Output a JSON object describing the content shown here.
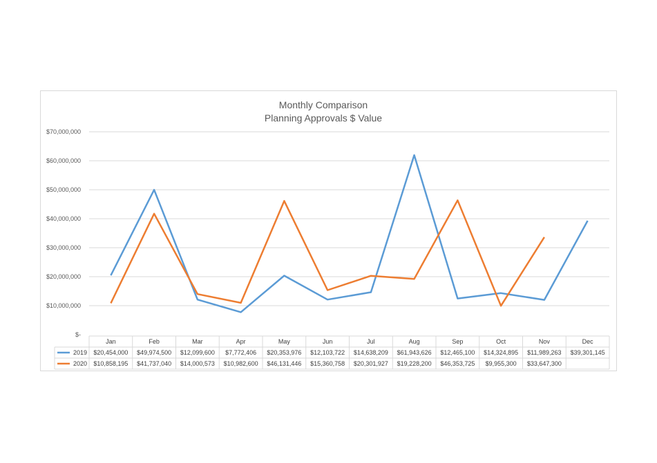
{
  "chart_data": {
    "type": "line",
    "title": [
      "Monthly Comparison",
      "Planning Approvals $ Value"
    ],
    "categories": [
      "Jan",
      "Feb",
      "Mar",
      "Apr",
      "May",
      "Jun",
      "Jul",
      "Aug",
      "Sep",
      "Oct",
      "Nov",
      "Dec"
    ],
    "y_ticks": [
      "$-",
      "$10,000,000",
      "$20,000,000",
      "$30,000,000",
      "$40,000,000",
      "$50,000,000",
      "$60,000,000",
      "$70,000,000"
    ],
    "ylim": [
      0,
      70000000
    ],
    "grid": true,
    "legend_placement": "data-table",
    "series": [
      {
        "name": "2019",
        "color": "#5b9bd5",
        "values": [
          20454000,
          49974500,
          12099600,
          7772406,
          20353976,
          12103722,
          14638209,
          61943626,
          12465100,
          14324895,
          11989263,
          39301145
        ],
        "labels": [
          "$20,454,000",
          "$49,974,500",
          "$12,099,600",
          "$7,772,406",
          "$20,353,976",
          "$12,103,722",
          "$14,638,209",
          "$61,943,626",
          "$12,465,100",
          "$14,324,895",
          "$11,989,263",
          "$39,301,145"
        ]
      },
      {
        "name": "2020",
        "color": "#ed7d31",
        "values": [
          10858195,
          41737040,
          14000573,
          10982600,
          46131446,
          15360758,
          20301927,
          19228200,
          46353725,
          9955300,
          33647300,
          null
        ],
        "labels": [
          "$10,858,195",
          "$41,737,040",
          "$14,000,573",
          "$10,982,600",
          "$46,131,446",
          "$15,360,758",
          "$20,301,927",
          "$19,228,200",
          "$46,353,725",
          "$9,955,300",
          "$33,647,300",
          ""
        ]
      }
    ]
  }
}
